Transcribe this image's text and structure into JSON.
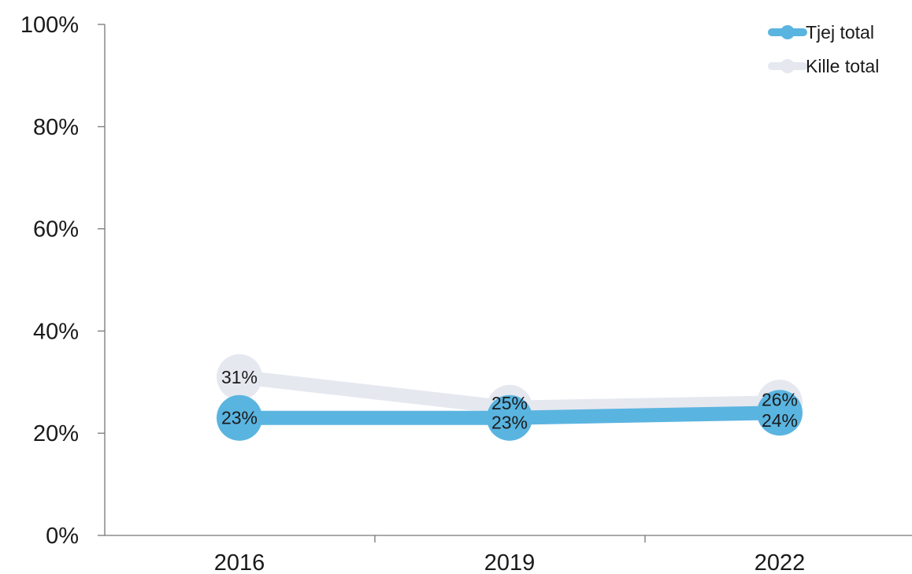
{
  "chart_data": {
    "type": "line",
    "categories": [
      "2016",
      "2019",
      "2022"
    ],
    "series": [
      {
        "name": "Tjej total",
        "values": [
          23,
          23,
          24
        ],
        "labels": [
          "23%",
          "23%",
          "24%"
        ],
        "color": "#5ab4e0"
      },
      {
        "name": "Kille total",
        "values": [
          31,
          25,
          26
        ],
        "labels": [
          "31%",
          "25%",
          "26%"
        ],
        "color": "#e6e8f0"
      }
    ],
    "yticks": [
      {
        "value": 0,
        "label": "0%"
      },
      {
        "value": 20,
        "label": "20%"
      },
      {
        "value": 40,
        "label": "40%"
      },
      {
        "value": 60,
        "label": "60%"
      },
      {
        "value": 80,
        "label": "80%"
      },
      {
        "value": 100,
        "label": "100%"
      }
    ],
    "ylim": [
      0,
      100
    ],
    "title": "",
    "xlabel": "",
    "ylabel": "",
    "grid": false,
    "legend": "top-right"
  }
}
